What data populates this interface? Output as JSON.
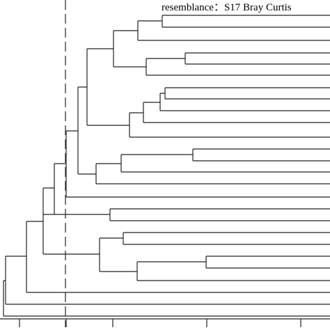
{
  "caption": {
    "text": "resemblance：S17 Bray Curtis"
  },
  "dendrogram": {
    "orientation": "horizontal",
    "leaf_count": 18,
    "cutoff_line": "dashed",
    "axis_ticks_count": 5,
    "line_color": "#222222"
  }
}
